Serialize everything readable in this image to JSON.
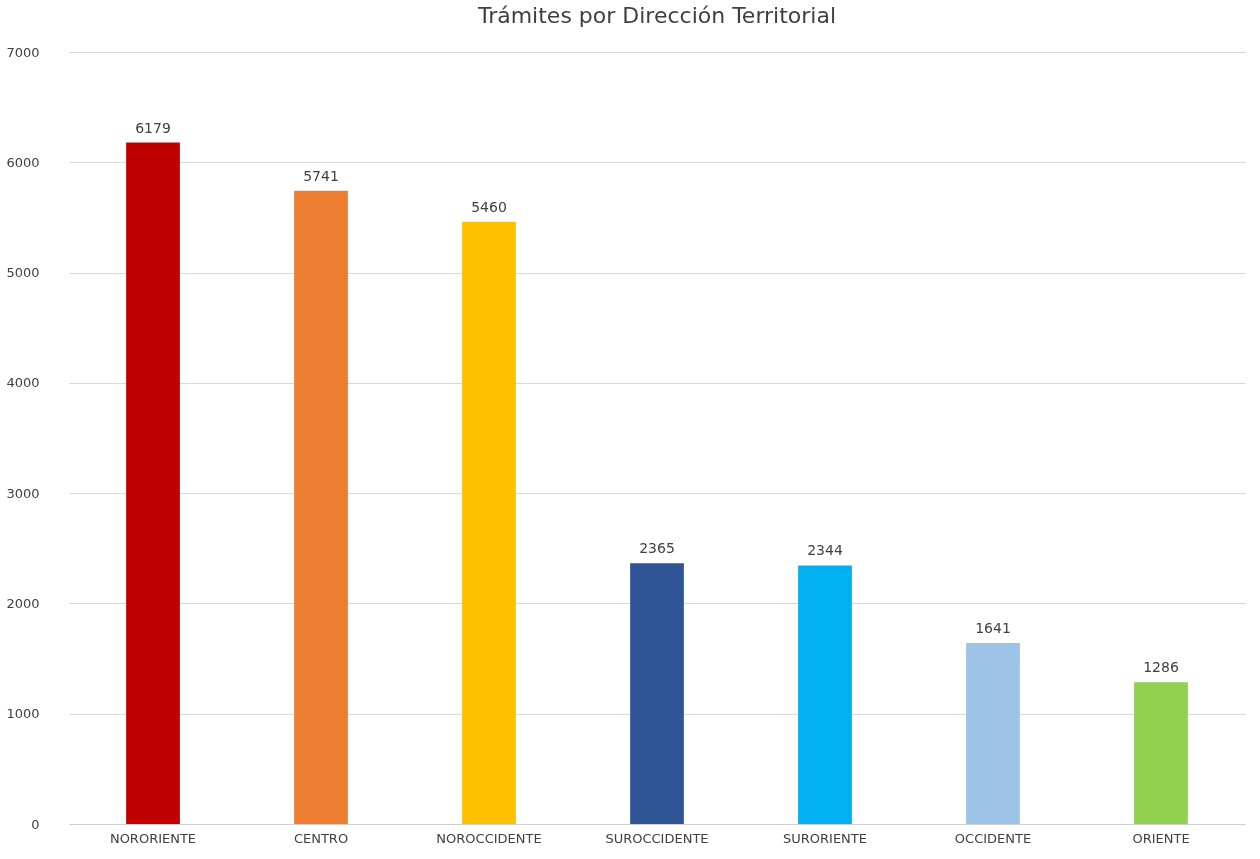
{
  "chart_data": {
    "type": "bar",
    "title": "Trámites por Dirección Territorial",
    "categories": [
      "NORORIENTE",
      "CENTRO",
      "NOROCCIDENTE",
      "SUROCCIDENTE",
      "SURORIENTE",
      "OCCIDENTE",
      "ORIENTE"
    ],
    "values": [
      6179,
      5741,
      5460,
      2365,
      2344,
      1641,
      1286
    ],
    "colors": [
      "#c00000",
      "#ed7d31",
      "#ffc000",
      "#2f5597",
      "#00b0f0",
      "#9dc3e6",
      "#92d050"
    ],
    "ylim": [
      0,
      7000
    ],
    "yticks": [
      0,
      1000,
      2000,
      3000,
      4000,
      5000,
      6000,
      7000
    ],
    "grid": "y",
    "data_labels": true,
    "legend": false
  }
}
